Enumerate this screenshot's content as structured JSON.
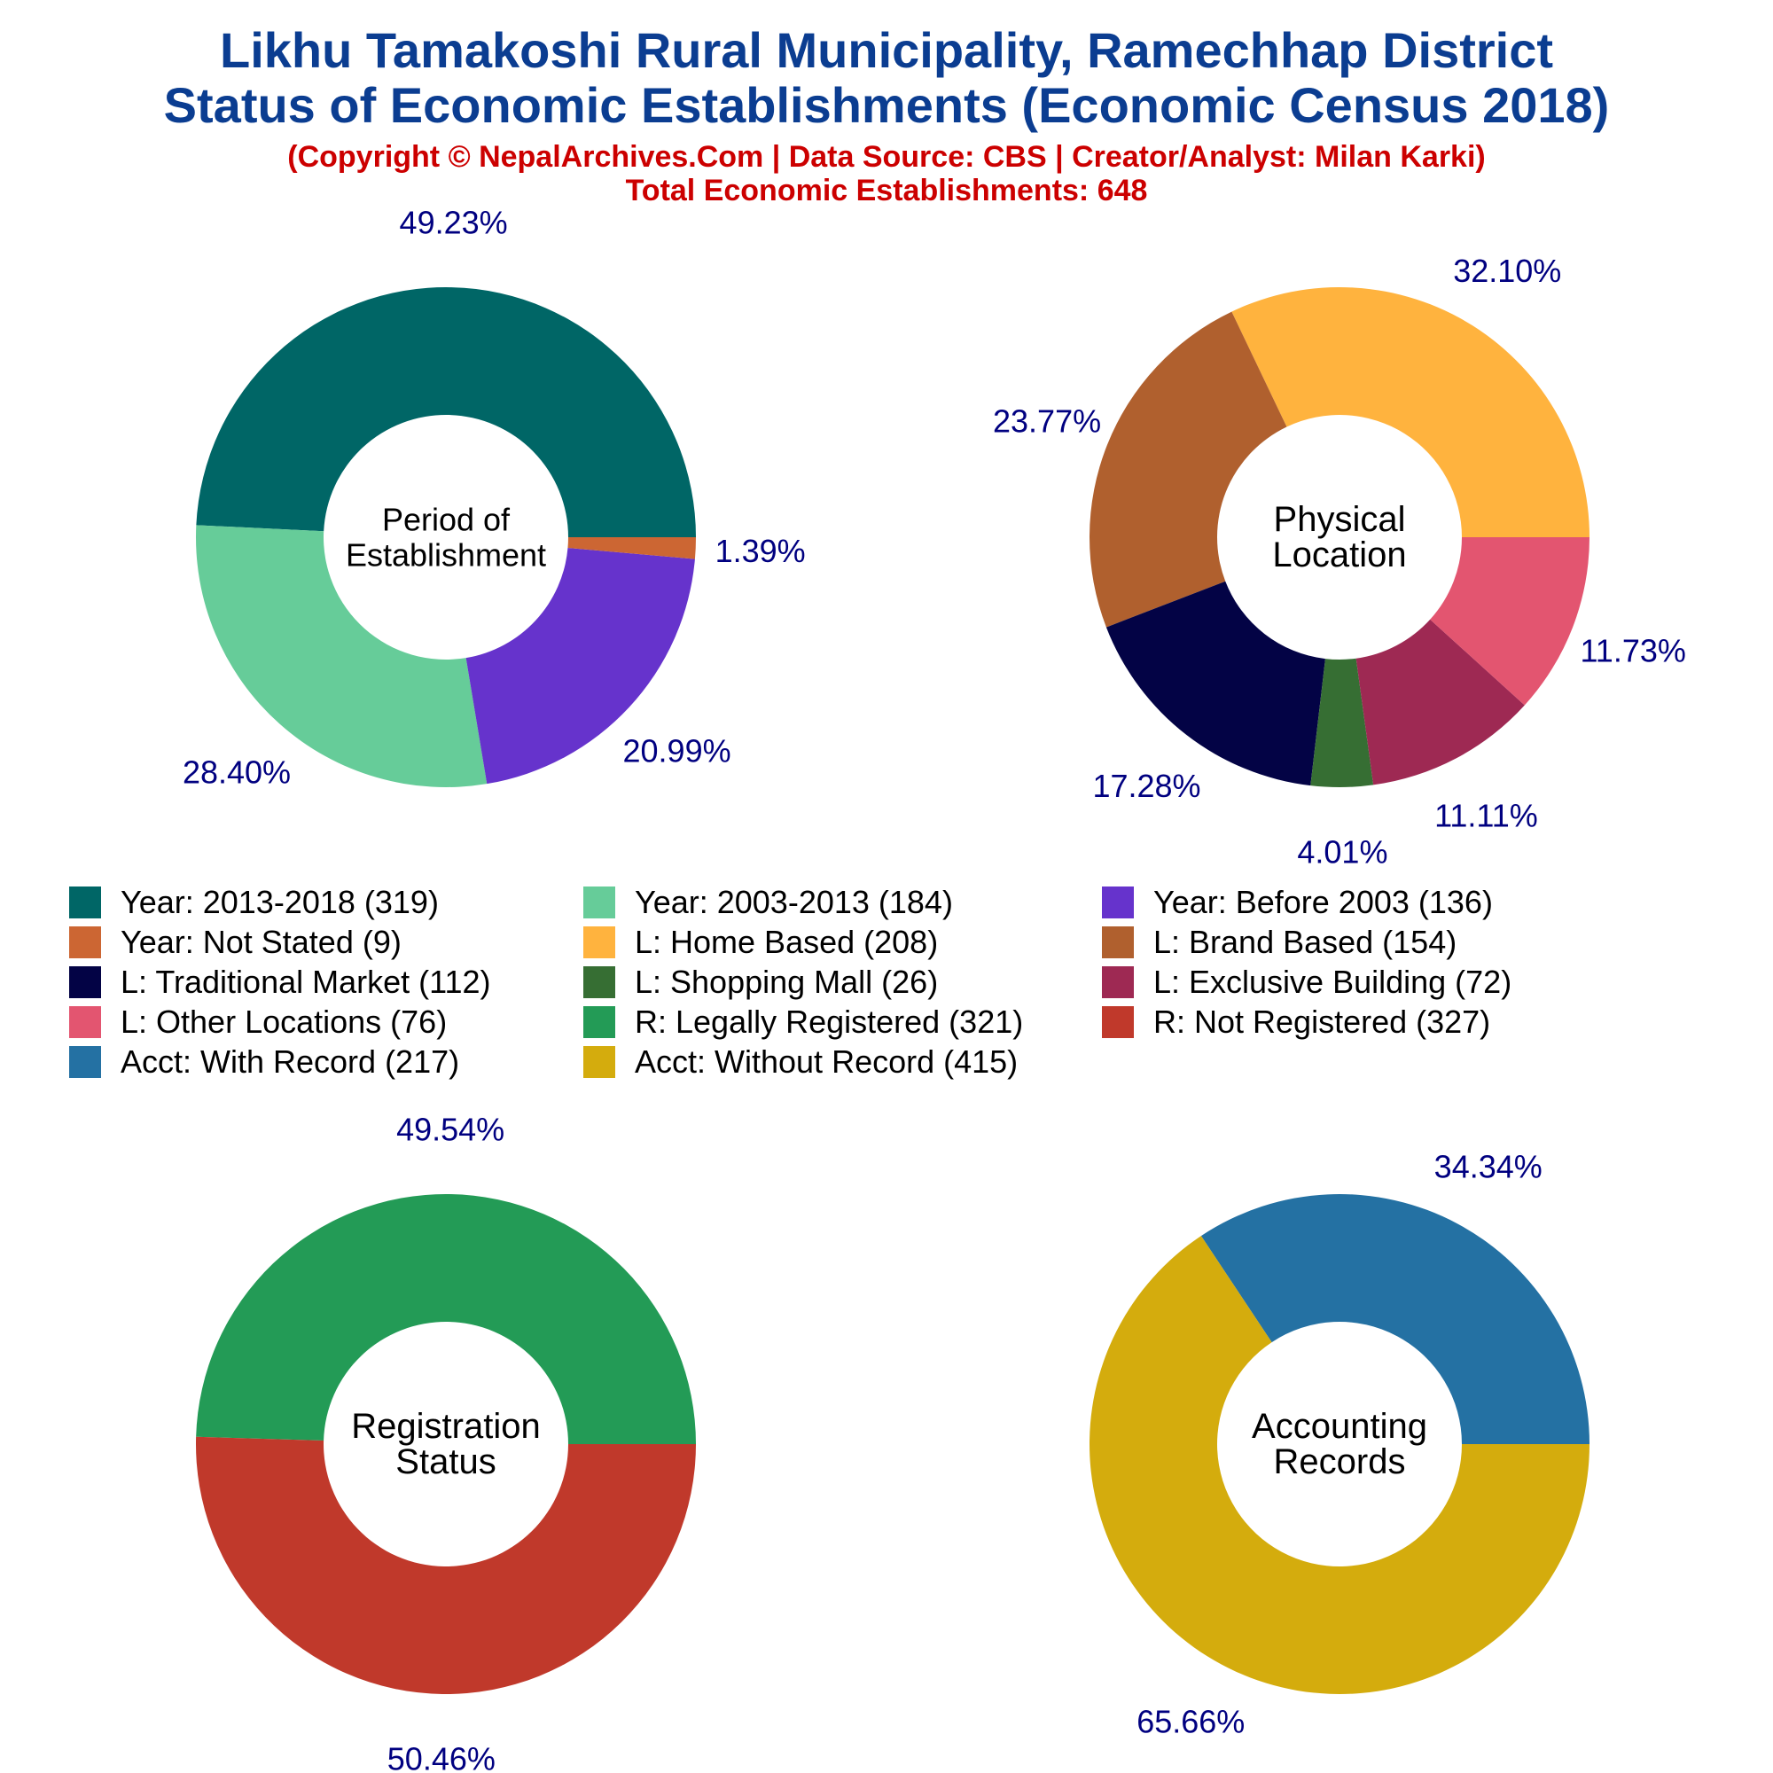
{
  "header": {
    "title_line1": "Likhu Tamakoshi Rural Municipality, Ramechhap District",
    "title_line2": "Status of Economic Establishments (Economic Census 2018)",
    "subtitle_line1": "(Copyright © NepalArchives.Com | Data Source: CBS | Creator/Analyst: Milan Karki)",
    "subtitle_line2": "Total Economic Establishments: 648"
  },
  "colors": {
    "title": "#0b3d91",
    "subtitle": "#cc0000",
    "percent_label": "#000080",
    "center_label": "#000000"
  },
  "chart_data": [
    {
      "type": "pie",
      "center_label": [
        "Period of",
        "Establishment"
      ],
      "start_angle_deg": 0,
      "slices": [
        {
          "label": "Year: 2013-2018",
          "value": 319,
          "percent_text": "49.23%",
          "color": "#006666"
        },
        {
          "label": "Year: 2003-2013",
          "value": 184,
          "percent_text": "28.40%",
          "color": "#66cc99"
        },
        {
          "label": "Year: Before 2003",
          "value": 136,
          "percent_text": "20.99%",
          "color": "#6633cc"
        },
        {
          "label": "Year: Not Stated",
          "value": 9,
          "percent_text": "1.39%",
          "color": "#cc6633"
        }
      ]
    },
    {
      "type": "pie",
      "center_label": [
        "Physical",
        "Location"
      ],
      "start_angle_deg": 0,
      "slices": [
        {
          "label": "L: Home Based",
          "value": 208,
          "percent_text": "32.10%",
          "color": "#ffb33e"
        },
        {
          "label": "L: Brand Based",
          "value": 154,
          "percent_text": "23.77%",
          "color": "#b0602e"
        },
        {
          "label": "L: Traditional Market",
          "value": 112,
          "percent_text": "17.28%",
          "color": "#030345"
        },
        {
          "label": "L: Shopping Mall",
          "value": 26,
          "percent_text": "4.01%",
          "color": "#366e33"
        },
        {
          "label": "L: Exclusive Building",
          "value": 72,
          "percent_text": "11.11%",
          "color": "#9e2953"
        },
        {
          "label": "L: Other Locations",
          "value": 76,
          "percent_text": "11.73%",
          "color": "#e35570"
        }
      ]
    },
    {
      "type": "pie",
      "center_label": [
        "Registration",
        "Status"
      ],
      "start_angle_deg": 0,
      "slices": [
        {
          "label": "R: Legally Registered",
          "value": 321,
          "percent_text": "49.54%",
          "color": "#239b56"
        },
        {
          "label": "R: Not Registered",
          "value": 327,
          "percent_text": "50.46%",
          "color": "#c0392b"
        }
      ]
    },
    {
      "type": "pie",
      "center_label": [
        "Accounting",
        "Records"
      ],
      "start_angle_deg": 0,
      "slices": [
        {
          "label": "Acct: With Record",
          "value": 217,
          "percent_text": "34.34%",
          "color": "#2471a3"
        },
        {
          "label": "Acct: Without Record",
          "value": 415,
          "percent_text": "65.66%",
          "color": "#d4ac0d"
        }
      ]
    }
  ],
  "legend": [
    {
      "label": "Year: 2013-2018 (319)",
      "color": "#006666"
    },
    {
      "label": "Year: 2003-2013 (184)",
      "color": "#66cc99"
    },
    {
      "label": "Year: Before 2003 (136)",
      "color": "#6633cc"
    },
    {
      "label": "Year: Not Stated (9)",
      "color": "#cc6633"
    },
    {
      "label": "L: Home Based (208)",
      "color": "#ffb33e"
    },
    {
      "label": "L: Brand Based (154)",
      "color": "#b0602e"
    },
    {
      "label": "L: Traditional Market (112)",
      "color": "#030345"
    },
    {
      "label": "L: Shopping Mall (26)",
      "color": "#366e33"
    },
    {
      "label": "L: Exclusive Building (72)",
      "color": "#9e2953"
    },
    {
      "label": "L: Other Locations (76)",
      "color": "#e35570"
    },
    {
      "label": "R: Legally Registered (321)",
      "color": "#239b56"
    },
    {
      "label": "R: Not Registered (327)",
      "color": "#c0392b"
    },
    {
      "label": "Acct: With Record (217)",
      "color": "#2471a3"
    },
    {
      "label": "Acct: Without Record (415)",
      "color": "#d4ac0d"
    }
  ]
}
